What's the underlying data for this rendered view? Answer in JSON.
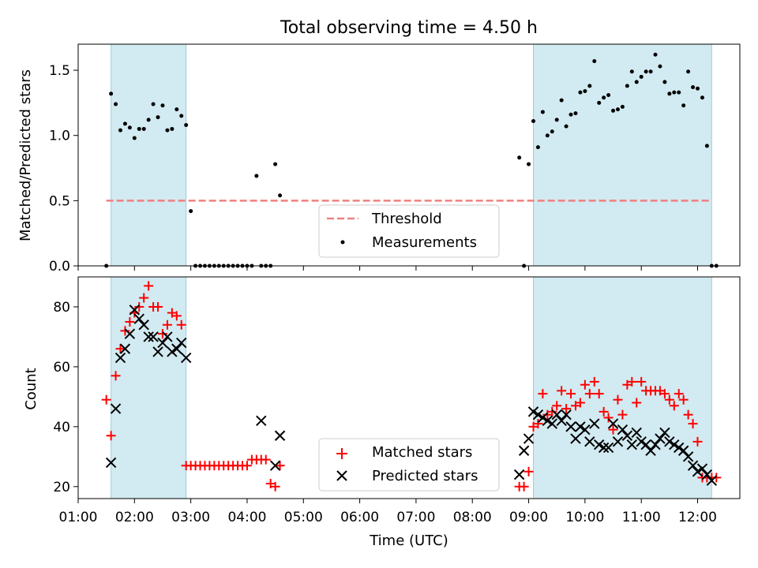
{
  "chart_data": [
    {
      "type": "scatter",
      "title": "Total observing time = 4.50 h",
      "xlabel": "",
      "ylabel": "Matched/Predicted stars",
      "xlim": [
        "01:00",
        "12:45"
      ],
      "ylim": [
        0,
        1.7
      ],
      "y_ticks": [
        0.0,
        0.5,
        1.0,
        1.5
      ],
      "y_tick_labels": [
        "0.0",
        "0.5",
        "1.0",
        "1.5"
      ],
      "shaded_intervals": [
        [
          "01:35",
          "02:55"
        ],
        [
          "09:05",
          "12:15"
        ]
      ],
      "shade_color": "#add8e6",
      "threshold": {
        "label": "Threshold",
        "value": 0.5,
        "x_range": [
          "01:30",
          "12:15"
        ],
        "color": "#f08080"
      },
      "legend": {
        "position": "lower center",
        "entries": [
          "Threshold",
          "Measurements"
        ]
      },
      "series": [
        {
          "name": "Measurements",
          "marker": "dot",
          "color": "#000000",
          "x": [
            "01:30",
            "01:35",
            "01:40",
            "01:45",
            "01:50",
            "01:55",
            "02:00",
            "02:05",
            "02:10",
            "02:15",
            "02:20",
            "02:25",
            "02:30",
            "02:35",
            "02:40",
            "02:45",
            "02:50",
            "02:55",
            "03:00",
            "03:05",
            "03:10",
            "03:15",
            "03:20",
            "03:25",
            "03:30",
            "03:35",
            "03:40",
            "03:45",
            "03:50",
            "03:55",
            "04:00",
            "04:05",
            "04:10",
            "04:15",
            "04:20",
            "04:25",
            "04:30",
            "04:35",
            "08:50",
            "08:55",
            "09:00",
            "09:05",
            "09:10",
            "09:15",
            "09:20",
            "09:25",
            "09:30",
            "09:35",
            "09:40",
            "09:45",
            "09:50",
            "09:55",
            "10:00",
            "10:05",
            "10:10",
            "10:15",
            "10:20",
            "10:25",
            "10:30",
            "10:35",
            "10:40",
            "10:45",
            "10:50",
            "10:55",
            "11:00",
            "11:05",
            "11:10",
            "11:15",
            "11:20",
            "11:25",
            "11:30",
            "11:35",
            "11:40",
            "11:45",
            "11:50",
            "11:55",
            "12:00",
            "12:05",
            "12:10",
            "12:15",
            "12:20"
          ],
          "y": [
            0.0,
            1.32,
            1.24,
            1.04,
            1.09,
            1.06,
            0.98,
            1.05,
            1.05,
            1.12,
            1.24,
            1.14,
            1.23,
            1.04,
            1.05,
            1.2,
            1.15,
            1.08,
            0.42,
            0.0,
            0.0,
            0.0,
            0.0,
            0.0,
            0.0,
            0.0,
            0.0,
            0.0,
            0.0,
            0.0,
            0.0,
            0.0,
            0.69,
            0.0,
            0.0,
            0.0,
            0.78,
            0.54,
            0.83,
            0.0,
            0.78,
            1.11,
            0.91,
            1.18,
            1.0,
            1.03,
            1.12,
            1.27,
            1.07,
            1.16,
            1.17,
            1.33,
            1.34,
            1.38,
            1.57,
            1.25,
            1.29,
            1.31,
            1.19,
            1.2,
            1.22,
            1.38,
            1.49,
            1.41,
            1.45,
            1.49,
            1.49,
            1.62,
            1.53,
            1.41,
            1.32,
            1.33,
            1.33,
            1.23,
            1.49,
            1.37,
            1.36,
            1.29,
            0.92,
            0.0,
            0.0
          ]
        }
      ]
    },
    {
      "type": "scatter",
      "title": "",
      "xlabel": "Time (UTC)",
      "ylabel": "Count",
      "xlim": [
        "01:00",
        "12:45"
      ],
      "ylim": [
        16,
        90
      ],
      "x_ticks": [
        "01:00",
        "02:00",
        "03:00",
        "04:00",
        "05:00",
        "06:00",
        "07:00",
        "08:00",
        "09:00",
        "10:00",
        "11:00",
        "12:00"
      ],
      "y_ticks": [
        20,
        40,
        60,
        80
      ],
      "shaded_intervals": [
        [
          "01:35",
          "02:55"
        ],
        [
          "09:05",
          "12:15"
        ]
      ],
      "shade_color": "#add8e6",
      "legend": {
        "position": "lower center",
        "entries": [
          "Matched stars",
          "Predicted stars"
        ]
      },
      "series": [
        {
          "name": "Matched stars",
          "marker": "plus",
          "color": "#ff0000",
          "x": [
            "01:30",
            "01:35",
            "01:40",
            "01:45",
            "01:50",
            "01:55",
            "02:00",
            "02:05",
            "02:10",
            "02:15",
            "02:20",
            "02:25",
            "02:30",
            "02:35",
            "02:40",
            "02:45",
            "02:50",
            "02:55",
            "03:00",
            "03:05",
            "03:10",
            "03:15",
            "03:20",
            "03:25",
            "03:30",
            "03:35",
            "03:40",
            "03:45",
            "03:50",
            "03:55",
            "04:00",
            "04:05",
            "04:10",
            "04:15",
            "04:20",
            "04:25",
            "04:30",
            "04:35",
            "08:50",
            "08:55",
            "09:00",
            "09:05",
            "09:10",
            "09:15",
            "09:20",
            "09:25",
            "09:30",
            "09:35",
            "09:40",
            "09:45",
            "09:50",
            "09:55",
            "10:00",
            "10:05",
            "10:10",
            "10:15",
            "10:20",
            "10:25",
            "10:30",
            "10:35",
            "10:40",
            "10:45",
            "10:50",
            "10:55",
            "11:00",
            "11:05",
            "11:10",
            "11:15",
            "11:20",
            "11:25",
            "11:30",
            "11:35",
            "11:40",
            "11:45",
            "11:50",
            "11:55",
            "12:00",
            "12:05",
            "12:10",
            "12:15",
            "12:20"
          ],
          "y": [
            49,
            37,
            57,
            66,
            72,
            75,
            78,
            80,
            83,
            87,
            80,
            80,
            71,
            74,
            78,
            77,
            74,
            27,
            27,
            27,
            27,
            27,
            27,
            27,
            27,
            27,
            27,
            27,
            27,
            27,
            27,
            29,
            29,
            29,
            29,
            21,
            20,
            27,
            20,
            20,
            25,
            40,
            41,
            51,
            44,
            45,
            47,
            52,
            46,
            51,
            47,
            48,
            54,
            51,
            55,
            51,
            45,
            43,
            39,
            49,
            44,
            54,
            55,
            48,
            55,
            52,
            52,
            52,
            52,
            51,
            49,
            47,
            51,
            49,
            44,
            41,
            35,
            23,
            23,
            23,
            23
          ]
        },
        {
          "name": "Predicted stars",
          "marker": "x",
          "color": "#000000",
          "x": [
            "01:35",
            "01:40",
            "01:45",
            "01:50",
            "01:55",
            "02:00",
            "02:05",
            "02:10",
            "02:15",
            "02:20",
            "02:25",
            "02:30",
            "02:35",
            "02:40",
            "02:45",
            "02:50",
            "02:55",
            "04:15",
            "04:30",
            "04:35",
            "08:50",
            "08:55",
            "09:00",
            "09:05",
            "09:10",
            "09:15",
            "09:20",
            "09:25",
            "09:30",
            "09:35",
            "09:40",
            "09:45",
            "09:50",
            "09:55",
            "10:00",
            "10:05",
            "10:10",
            "10:15",
            "10:20",
            "10:25",
            "10:30",
            "10:35",
            "10:40",
            "10:45",
            "10:50",
            "10:55",
            "11:00",
            "11:05",
            "11:10",
            "11:15",
            "11:20",
            "11:25",
            "11:30",
            "11:35",
            "11:40",
            "11:45",
            "11:50",
            "11:55",
            "12:00",
            "12:05",
            "12:10",
            "12:15"
          ],
          "y": [
            28,
            46,
            63,
            66,
            71,
            79,
            76,
            74,
            70,
            70,
            65,
            68,
            70,
            65,
            66,
            68,
            63,
            42,
            27,
            37,
            24,
            32,
            36,
            45,
            44,
            43,
            42,
            41,
            44,
            42,
            44,
            40,
            36,
            40,
            39,
            35,
            41,
            34,
            33,
            33,
            41,
            35,
            39,
            37,
            34,
            38,
            35,
            34,
            32,
            34,
            36,
            38,
            35,
            34,
            33,
            32,
            30,
            27,
            25,
            26,
            24,
            22
          ]
        }
      ]
    }
  ]
}
